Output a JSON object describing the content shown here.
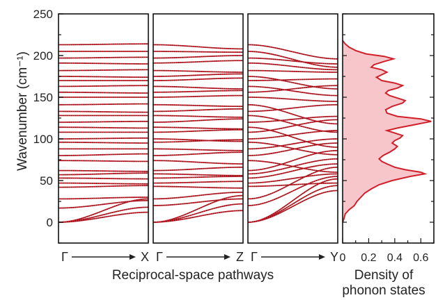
{
  "chart_data": [
    {
      "type": "line",
      "title": "",
      "ylabel": "Wavenumber (cm⁻¹)",
      "xlabel": "Reciprocal-space pathways",
      "ylim": [
        -25,
        250
      ],
      "yticks": [
        0,
        50,
        100,
        150,
        200,
        250
      ],
      "ytick_labels": [
        "0",
        "50",
        "100",
        "150",
        "200",
        "250"
      ],
      "grid": false,
      "line_color": "#d11f2a",
      "overlay_color": "#1a1a1a",
      "panels": [
        {
          "start_label": "Γ",
          "end_label": "X",
          "bands": [
            {
              "start": 0,
              "end": 28
            },
            {
              "start": 0,
              "end": 18
            },
            {
              "start": 0,
              "end": 12
            },
            {
              "start": 17,
              "end": 26
            },
            {
              "start": 28,
              "end": 30
            },
            {
              "start": 42,
              "end": 44
            },
            {
              "start": 47,
              "end": 46
            },
            {
              "start": 53,
              "end": 52
            },
            {
              "start": 57,
              "end": 59
            },
            {
              "start": 62,
              "end": 61
            },
            {
              "start": 74,
              "end": 73
            },
            {
              "start": 80,
              "end": 82
            },
            {
              "start": 88,
              "end": 88
            },
            {
              "start": 96,
              "end": 95
            },
            {
              "start": 100,
              "end": 101
            },
            {
              "start": 108,
              "end": 108
            },
            {
              "start": 114,
              "end": 113
            },
            {
              "start": 120,
              "end": 121
            },
            {
              "start": 128,
              "end": 128
            },
            {
              "start": 133,
              "end": 132
            },
            {
              "start": 141,
              "end": 142
            },
            {
              "start": 150,
              "end": 150
            },
            {
              "start": 156,
              "end": 155
            },
            {
              "start": 163,
              "end": 164
            },
            {
              "start": 170,
              "end": 170
            },
            {
              "start": 175,
              "end": 174
            },
            {
              "start": 182,
              "end": 183
            },
            {
              "start": 191,
              "end": 190
            },
            {
              "start": 197,
              "end": 198
            },
            {
              "start": 205,
              "end": 205
            },
            {
              "start": 213,
              "end": 214
            }
          ]
        },
        {
          "start_label": "Γ",
          "end_label": "Z",
          "bands": [
            {
              "start": 0,
              "end": 32
            },
            {
              "start": 0,
              "end": 22
            },
            {
              "start": 0,
              "end": 14
            },
            {
              "start": 20,
              "end": 28
            },
            {
              "start": 28,
              "end": 36
            },
            {
              "start": 43,
              "end": 41
            },
            {
              "start": 47,
              "end": 49
            },
            {
              "start": 53,
              "end": 55
            },
            {
              "start": 58,
              "end": 56
            },
            {
              "start": 62,
              "end": 66
            },
            {
              "start": 74,
              "end": 70
            },
            {
              "start": 80,
              "end": 84
            },
            {
              "start": 88,
              "end": 86
            },
            {
              "start": 96,
              "end": 99
            },
            {
              "start": 100,
              "end": 97
            },
            {
              "start": 108,
              "end": 111
            },
            {
              "start": 114,
              "end": 112
            },
            {
              "start": 120,
              "end": 124
            },
            {
              "start": 128,
              "end": 126
            },
            {
              "start": 133,
              "end": 136
            },
            {
              "start": 141,
              "end": 139
            },
            {
              "start": 150,
              "end": 152
            },
            {
              "start": 156,
              "end": 158
            },
            {
              "start": 163,
              "end": 160
            },
            {
              "start": 170,
              "end": 173
            },
            {
              "start": 175,
              "end": 178
            },
            {
              "start": 182,
              "end": 180
            },
            {
              "start": 191,
              "end": 194
            },
            {
              "start": 197,
              "end": 200
            },
            {
              "start": 205,
              "end": 204
            },
            {
              "start": 213,
              "end": 208
            }
          ]
        },
        {
          "start_label": "Γ",
          "end_label": "Y",
          "bands": [
            {
              "start": 0,
              "end": 52
            },
            {
              "start": 0,
              "end": 44
            },
            {
              "start": 0,
              "end": 38
            },
            {
              "start": 20,
              "end": 55
            },
            {
              "start": 28,
              "end": 66
            },
            {
              "start": 43,
              "end": 47
            },
            {
              "start": 47,
              "end": 58
            },
            {
              "start": 53,
              "end": 70
            },
            {
              "start": 58,
              "end": 76
            },
            {
              "start": 62,
              "end": 86
            },
            {
              "start": 74,
              "end": 60
            },
            {
              "start": 80,
              "end": 95
            },
            {
              "start": 88,
              "end": 100
            },
            {
              "start": 96,
              "end": 81
            },
            {
              "start": 100,
              "end": 110
            },
            {
              "start": 108,
              "end": 123
            },
            {
              "start": 114,
              "end": 90
            },
            {
              "start": 120,
              "end": 127
            },
            {
              "start": 128,
              "end": 108
            },
            {
              "start": 133,
              "end": 141
            },
            {
              "start": 141,
              "end": 118
            },
            {
              "start": 150,
              "end": 145
            },
            {
              "start": 156,
              "end": 164
            },
            {
              "start": 163,
              "end": 152
            },
            {
              "start": 170,
              "end": 172
            },
            {
              "start": 175,
              "end": 160
            },
            {
              "start": 182,
              "end": 180
            },
            {
              "start": 191,
              "end": 183
            },
            {
              "start": 197,
              "end": 190
            },
            {
              "start": 205,
              "end": 186
            },
            {
              "start": 213,
              "end": 196
            }
          ]
        }
      ]
    },
    {
      "type": "area",
      "title": "",
      "xlabel": "Density of\nphonon states",
      "xlabel_lines": [
        "Density of",
        "phonon states"
      ],
      "xlim": [
        0,
        0.7
      ],
      "xticks": [
        0,
        0.2,
        0.4,
        0.6
      ],
      "xtick_labels": [
        "0",
        "0.2",
        "0.4",
        "0.6"
      ],
      "ylim": [
        -25,
        250
      ],
      "line_color": "#d11f2a",
      "fill_color": "#f6c6ca",
      "points": [
        [
          0,
          0.0
        ],
        [
          4,
          0.01
        ],
        [
          10,
          0.02
        ],
        [
          15,
          0.05
        ],
        [
          20,
          0.09
        ],
        [
          25,
          0.11
        ],
        [
          30,
          0.14
        ],
        [
          35,
          0.17
        ],
        [
          40,
          0.22
        ],
        [
          45,
          0.28
        ],
        [
          50,
          0.38
        ],
        [
          55,
          0.52
        ],
        [
          58,
          0.63
        ],
        [
          60,
          0.6
        ],
        [
          63,
          0.48
        ],
        [
          66,
          0.4
        ],
        [
          70,
          0.34
        ],
        [
          73,
          0.3
        ],
        [
          76,
          0.28
        ],
        [
          80,
          0.31
        ],
        [
          84,
          0.36
        ],
        [
          88,
          0.4
        ],
        [
          91,
          0.42
        ],
        [
          95,
          0.38
        ],
        [
          98,
          0.4
        ],
        [
          101,
          0.44
        ],
        [
          104,
          0.46
        ],
        [
          107,
          0.4
        ],
        [
          110,
          0.34
        ],
        [
          113,
          0.42
        ],
        [
          117,
          0.55
        ],
        [
          121,
          0.68
        ],
        [
          124,
          0.6
        ],
        [
          127,
          0.42
        ],
        [
          131,
          0.34
        ],
        [
          135,
          0.33
        ],
        [
          139,
          0.38
        ],
        [
          143,
          0.46
        ],
        [
          146,
          0.48
        ],
        [
          149,
          0.42
        ],
        [
          152,
          0.36
        ],
        [
          155,
          0.33
        ],
        [
          158,
          0.35
        ],
        [
          161,
          0.42
        ],
        [
          164,
          0.46
        ],
        [
          167,
          0.4
        ],
        [
          170,
          0.3
        ],
        [
          174,
          0.26
        ],
        [
          177,
          0.3
        ],
        [
          180,
          0.34
        ],
        [
          183,
          0.3
        ],
        [
          186,
          0.22
        ],
        [
          189,
          0.24
        ],
        [
          193,
          0.32
        ],
        [
          196,
          0.39
        ],
        [
          199,
          0.32
        ],
        [
          202,
          0.18
        ],
        [
          206,
          0.1
        ],
        [
          210,
          0.05
        ],
        [
          214,
          0.02
        ],
        [
          218,
          0.0
        ]
      ]
    }
  ]
}
